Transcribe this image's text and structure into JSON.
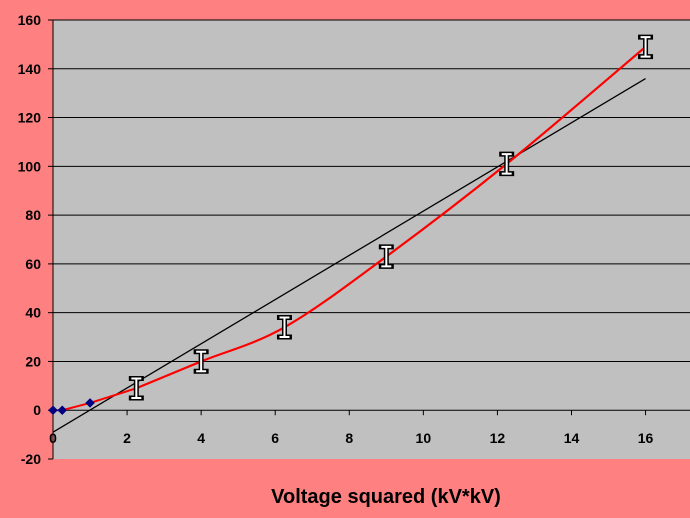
{
  "colors": {
    "background": "#FF8080",
    "plot_area": "#C0C0C0",
    "gridline": "#000000",
    "fit_line": "#000000",
    "measured_curve": "#FF0000",
    "marker": "#000080"
  },
  "chart_data": {
    "type": "line",
    "title": "",
    "xlabel": "Voltage squared (kV*kV)",
    "ylabel": "",
    "xlim": [
      0,
      17.2
    ],
    "ylim": [
      -20,
      160
    ],
    "x_ticks": [
      0,
      2,
      4,
      6,
      8,
      10,
      12,
      14,
      16
    ],
    "y_ticks": [
      -20,
      0,
      20,
      40,
      60,
      80,
      100,
      120,
      140,
      160
    ],
    "grid": "horizontal",
    "legend": "none",
    "series": [
      {
        "type": "scatter",
        "marker": "diamond",
        "points": [
          [
            0,
            0
          ],
          [
            0.25,
            0
          ],
          [
            1,
            3
          ]
        ]
      },
      {
        "type": "line",
        "marker": "I-beam",
        "points": [
          [
            2.25,
            9
          ],
          [
            4,
            20
          ],
          [
            6.25,
            34
          ],
          [
            9,
            63
          ],
          [
            12.25,
            101
          ],
          [
            16,
            149
          ]
        ],
        "error": 4
      },
      {
        "type": "line",
        "style": "fit",
        "points": [
          [
            0,
            -9
          ],
          [
            16,
            136
          ]
        ]
      }
    ]
  }
}
